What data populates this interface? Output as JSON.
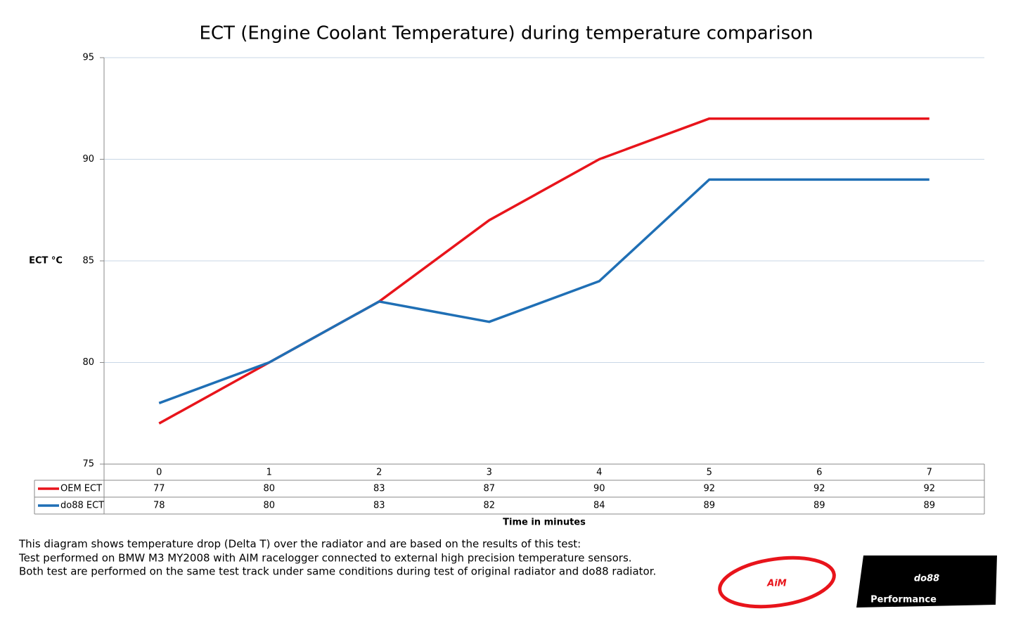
{
  "chart_data": {
    "type": "line",
    "title": "ECT (Engine Coolant Temperature) during temperature comparison",
    "y_label": "ECT °C",
    "x_label": "Time in minutes",
    "categories": [
      "0",
      "1",
      "2",
      "3",
      "4",
      "5",
      "6",
      "7"
    ],
    "series": [
      {
        "name": "OEM ECT",
        "color": "#e8141b",
        "values": [
          77,
          80,
          83,
          87,
          90,
          92,
          92,
          92
        ]
      },
      {
        "name": "do88 ECT",
        "color": "#1f6fb5",
        "values": [
          78,
          80,
          83,
          82,
          84,
          89,
          89,
          89
        ]
      }
    ],
    "ylim": [
      75,
      95
    ],
    "yticks": [
      75,
      80,
      85,
      90,
      95
    ],
    "grid": true,
    "data_table": true
  },
  "notes": [
    "This diagram shows temperature drop (Delta T) over the radiator and are based on the results of this test:",
    "Test performed on BMW M3 MY2008 with AIM racelogger connected to external high precision temperature sensors.",
    "Both test are performed on the same test track under same conditions during test of original radiator and do88 radiator."
  ],
  "logos": [
    "AiM",
    "do88",
    "Performance"
  ]
}
